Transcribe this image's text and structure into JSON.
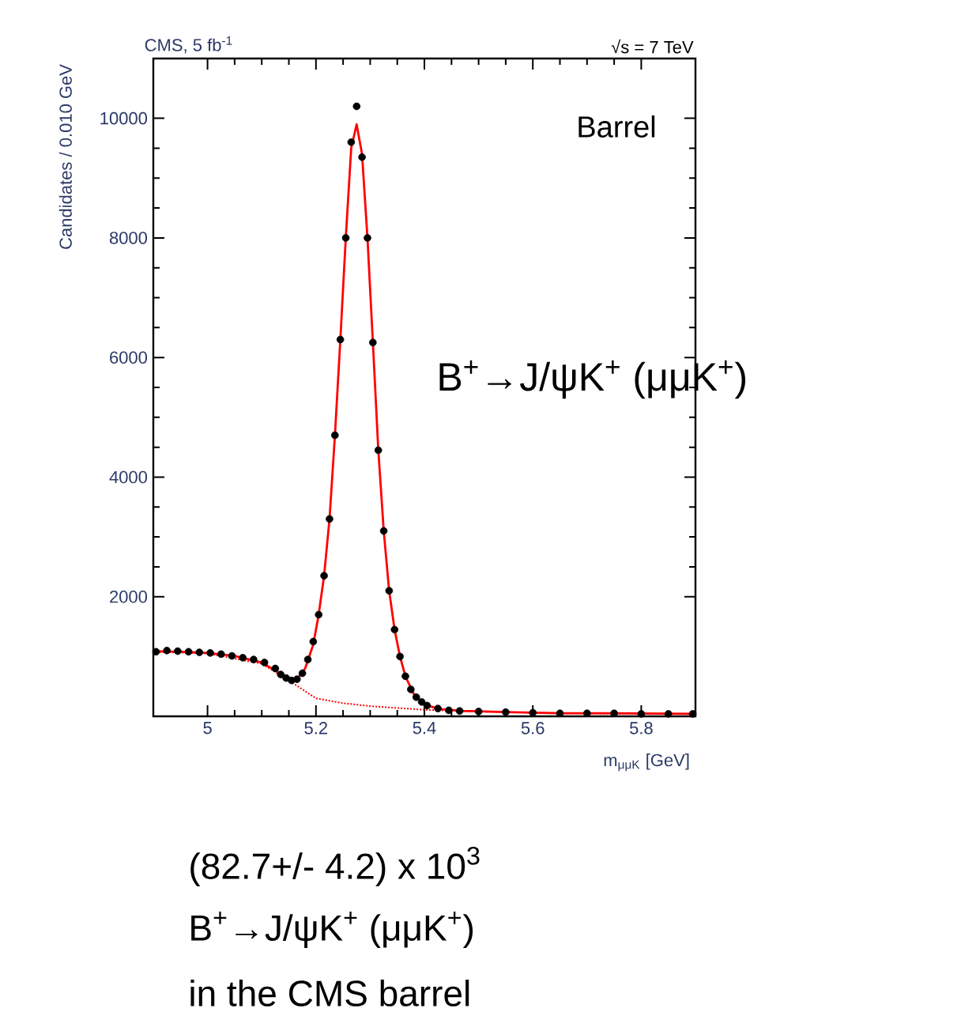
{
  "chart_data": {
    "type": "scatter",
    "title": "CMS, 5 fb$^{-1}$",
    "subtitle": "√s = 7 TeV",
    "xlabel": "m$_{μμK}$ [GeV]",
    "ylabel": "Candidates / 0.010 GeV",
    "xlim": [
      4.9,
      5.9
    ],
    "xticks": [
      5,
      5.2,
      5.4,
      5.6,
      5.8
    ],
    "ylim": [
      0,
      11000
    ],
    "yticks": [
      2000,
      4000,
      6000,
      8000,
      10000
    ],
    "grid": false,
    "series": [
      {
        "type": "scatter",
        "marker": "circle",
        "color": "#000000",
        "x": [
          4.905,
          4.925,
          4.945,
          4.965,
          4.985,
          5.005,
          5.025,
          5.045,
          5.065,
          5.085,
          5.105,
          5.125,
          5.135,
          5.145,
          5.155,
          5.165,
          5.175,
          5.185,
          5.195,
          5.205,
          5.215,
          5.225,
          5.235,
          5.245,
          5.255,
          5.265,
          5.275,
          5.285,
          5.295,
          5.305,
          5.315,
          5.325,
          5.335,
          5.345,
          5.355,
          5.365,
          5.375,
          5.385,
          5.395,
          5.405,
          5.425,
          5.445,
          5.465,
          5.5,
          5.55,
          5.6,
          5.65,
          5.7,
          5.75,
          5.8,
          5.85,
          5.895
        ],
        "values": [
          1080,
          1100,
          1090,
          1080,
          1070,
          1060,
          1040,
          1010,
          980,
          950,
          900,
          800,
          700,
          640,
          600,
          620,
          720,
          950,
          1250,
          1700,
          2350,
          3300,
          4700,
          6300,
          8000,
          9600,
          10200,
          9350,
          8000,
          6250,
          4450,
          3100,
          2100,
          1450,
          1000,
          670,
          450,
          320,
          240,
          180,
          130,
          100,
          90,
          80,
          70,
          60,
          50,
          50,
          50,
          40,
          40,
          40
        ]
      },
      {
        "type": "line",
        "marker": "none",
        "line_style": "solid",
        "color": "#ff0000",
        "x": [
          4.9,
          4.95,
          5.0,
          5.05,
          5.1,
          5.13,
          5.15,
          5.165,
          5.18,
          5.195,
          5.205,
          5.215,
          5.225,
          5.235,
          5.245,
          5.255,
          5.265,
          5.275,
          5.285,
          5.295,
          5.305,
          5.315,
          5.325,
          5.335,
          5.345,
          5.355,
          5.365,
          5.38,
          5.4,
          5.43,
          5.47,
          5.55,
          5.65,
          5.75,
          5.9
        ],
        "values": [
          1090,
          1080,
          1060,
          1010,
          900,
          740,
          640,
          620,
          800,
          1200,
          1700,
          2350,
          3300,
          4700,
          6300,
          8000,
          9500,
          9900,
          9400,
          8000,
          6250,
          4450,
          3100,
          2100,
          1450,
          1000,
          670,
          380,
          190,
          120,
          90,
          70,
          50,
          50,
          40
        ]
      },
      {
        "type": "line",
        "marker": "none",
        "line_style": "dotted",
        "color": "#ff0000",
        "x": [
          4.9,
          5.0,
          5.1,
          5.15,
          5.2,
          5.25,
          5.3,
          5.4,
          5.5,
          5.6,
          5.7,
          5.8,
          5.9
        ],
        "values": [
          1080,
          1050,
          880,
          600,
          300,
          220,
          170,
          110,
          80,
          60,
          50,
          40,
          40
        ]
      }
    ],
    "annotations": [
      "Barrel",
      "B$^{+}$→J/ψK$^{+}$ (μμK$^{+}$)",
      "(82.7+/- 4.2) x 10$^{3}$",
      "B$^{+}$→J/ψK$^{+}$ (μμK$^{+}$)",
      "in the CMS barrel"
    ]
  }
}
